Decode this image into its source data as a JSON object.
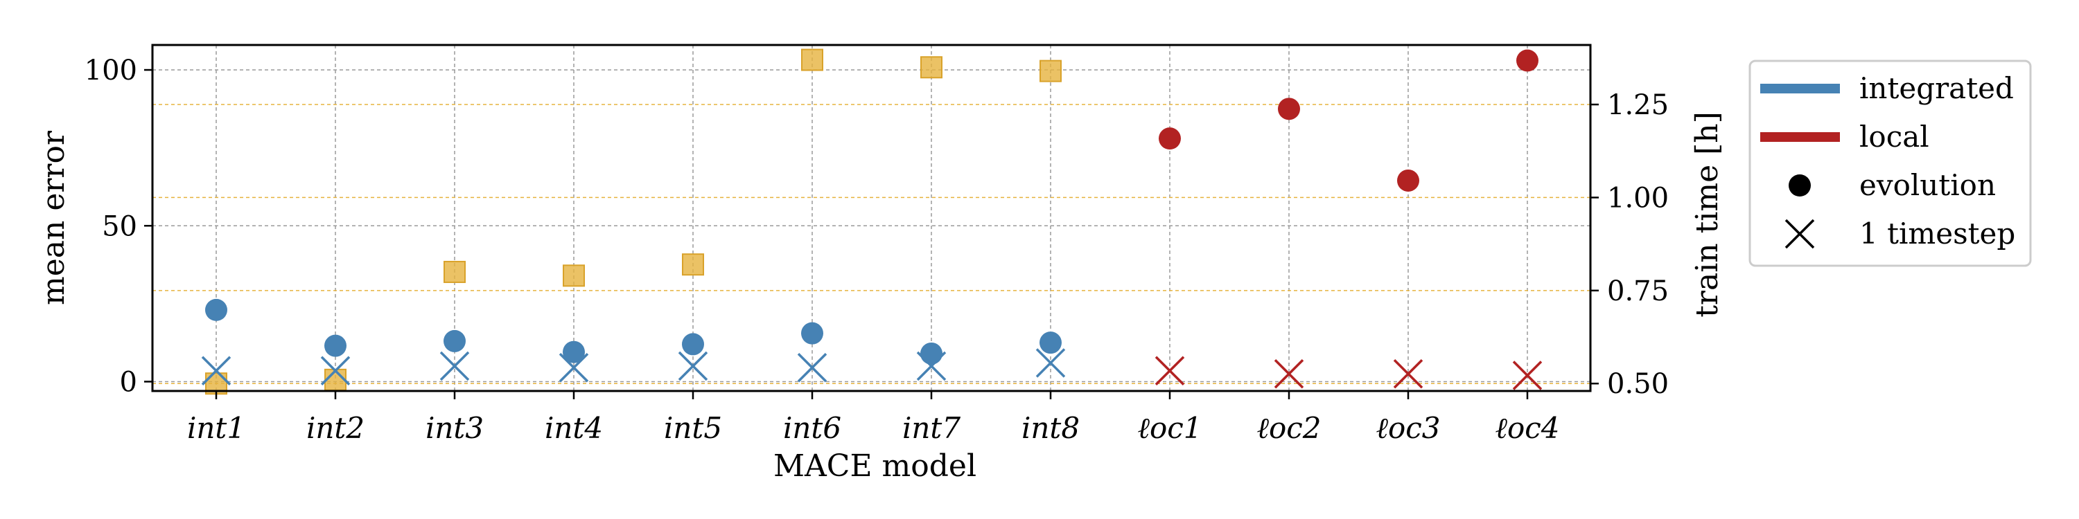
{
  "chart_data": {
    "type": "scatter",
    "xlabel": "MACE model",
    "ylabel": "mean error",
    "y2label": "train time [h]",
    "categories": [
      "int1",
      "int2",
      "int3",
      "int4",
      "int5",
      "int6",
      "int7",
      "int8",
      "ℓoc1",
      "ℓoc2",
      "ℓoc3",
      "ℓoc4"
    ],
    "ylim": [
      -3,
      108
    ],
    "y2lim": [
      0.48,
      1.41
    ],
    "yticks": [
      0,
      50,
      100
    ],
    "y2ticks": [
      0.5,
      0.75,
      1.0,
      1.25
    ],
    "y2tick_labels": [
      "0.50",
      "0.75",
      "1.00",
      "1.25"
    ],
    "grid": true,
    "legend_position": "outside-right",
    "series": [
      {
        "name": "integrated",
        "metric": "evolution",
        "marker": "circle",
        "color": "#4682b4",
        "values": [
          23,
          11.5,
          13,
          9.5,
          12,
          15.5,
          9,
          12.5,
          null,
          null,
          null,
          null
        ]
      },
      {
        "name": "integrated",
        "metric": "1 timestep",
        "marker": "x",
        "color": "#4682b4",
        "values": [
          3.5,
          3.5,
          5,
          4.5,
          5,
          4.5,
          5,
          6,
          null,
          null,
          null,
          null
        ]
      },
      {
        "name": "local",
        "metric": "evolution",
        "marker": "circle",
        "color": "#b22222",
        "values": [
          null,
          null,
          null,
          null,
          null,
          null,
          null,
          null,
          78,
          87.5,
          64.5,
          103
        ]
      },
      {
        "name": "local",
        "metric": "1 timestep",
        "marker": "x",
        "color": "#b22222",
        "values": [
          null,
          null,
          null,
          null,
          null,
          null,
          null,
          null,
          3.5,
          2.5,
          2.5,
          2
        ]
      },
      {
        "metric": "train time",
        "axis": "right",
        "marker": "square",
        "color": "#e6b33e",
        "values": [
          0.5,
          0.51,
          0.8,
          0.79,
          0.82,
          1.37,
          1.35,
          1.34,
          null,
          null,
          null,
          null
        ]
      }
    ],
    "legend": [
      {
        "label": "integrated",
        "kind": "line",
        "color": "#4682b4"
      },
      {
        "label": "local",
        "kind": "line",
        "color": "#b22222"
      },
      {
        "label": "evolution",
        "kind": "circle",
        "color": "#000000"
      },
      {
        "label": "1 timestep",
        "kind": "x",
        "color": "#000000"
      }
    ]
  }
}
